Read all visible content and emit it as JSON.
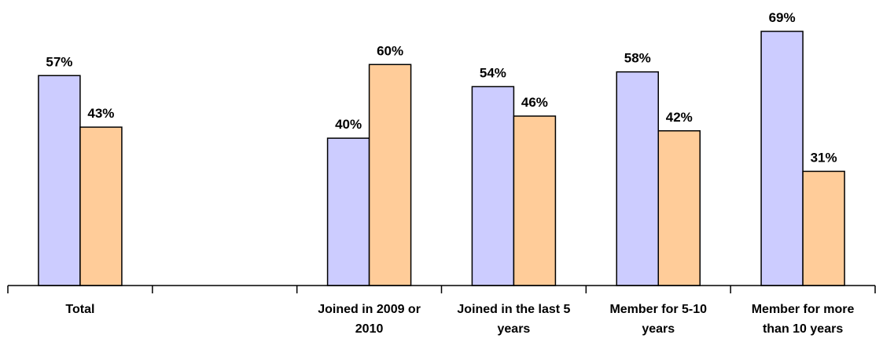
{
  "chart_data": {
    "type": "bar",
    "categories": [
      [
        "Total"
      ],
      [],
      [
        "Joined in 2009 or",
        "2010"
      ],
      [
        "Joined in the last 5",
        "years"
      ],
      [
        "Member for 5-10",
        "years"
      ],
      [
        "Member for more",
        "than 10 years"
      ]
    ],
    "series": [
      {
        "color": "#ccccff",
        "values": [
          57,
          null,
          40,
          54,
          58,
          69
        ],
        "labels": [
          "57%",
          null,
          "40%",
          "54%",
          "58%",
          "69%"
        ]
      },
      {
        "color": "#ffcc99",
        "values": [
          43,
          null,
          60,
          46,
          42,
          31
        ],
        "labels": [
          "43%",
          null,
          "60%",
          "46%",
          "42%",
          "31%"
        ]
      }
    ],
    "ylim": [
      0,
      69
    ],
    "grid": false,
    "legend": "none",
    "value_unit": "%"
  }
}
